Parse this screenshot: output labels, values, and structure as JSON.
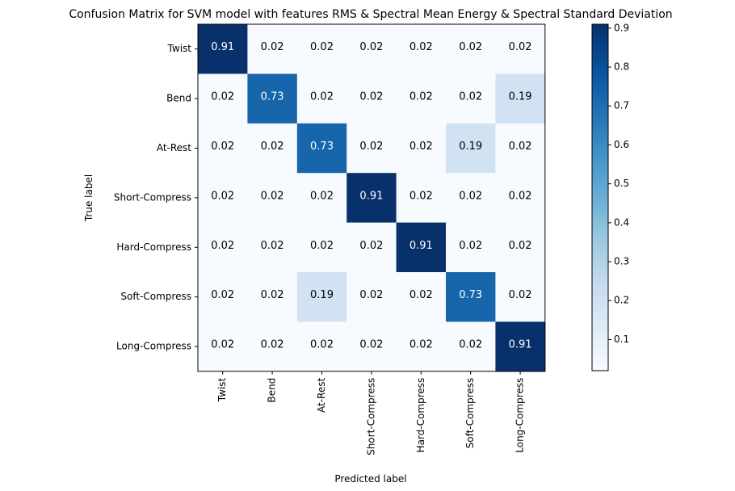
{
  "chart_data": {
    "type": "heatmap",
    "title": "Confusion Matrix for SVM model with features RMS & Spectral Mean Energy & Spectral Standard Deviation",
    "xlabel": "Predicted label",
    "ylabel": "True label",
    "x_categories": [
      "Twist",
      "Bend",
      "At-Rest",
      "Short-Compress",
      "Hard-Compress",
      "Soft-Compress",
      "Long-Compress"
    ],
    "y_categories": [
      "Twist",
      "Bend",
      "At-Rest",
      "Short-Compress",
      "Hard-Compress",
      "Soft-Compress",
      "Long-Compress"
    ],
    "values": [
      [
        0.91,
        0.02,
        0.02,
        0.02,
        0.02,
        0.02,
        0.02
      ],
      [
        0.02,
        0.73,
        0.02,
        0.02,
        0.02,
        0.02,
        0.19
      ],
      [
        0.02,
        0.02,
        0.73,
        0.02,
        0.02,
        0.19,
        0.02
      ],
      [
        0.02,
        0.02,
        0.02,
        0.91,
        0.02,
        0.02,
        0.02
      ],
      [
        0.02,
        0.02,
        0.02,
        0.02,
        0.91,
        0.02,
        0.02
      ],
      [
        0.02,
        0.02,
        0.19,
        0.02,
        0.02,
        0.73,
        0.02
      ],
      [
        0.02,
        0.02,
        0.02,
        0.02,
        0.02,
        0.02,
        0.91
      ]
    ],
    "colormap": "Blues",
    "colorbar": {
      "range": [
        0.02,
        0.91
      ],
      "ticks": [
        0.1,
        0.2,
        0.3,
        0.4,
        0.5,
        0.6,
        0.7,
        0.8,
        0.9
      ],
      "tick_labels": [
        "0.1",
        "0.2",
        "0.3",
        "0.4",
        "0.5",
        "0.6",
        "0.7",
        "0.8",
        "0.9"
      ]
    },
    "text_colors": {
      "dark": "#000000",
      "light": "#ffffff"
    }
  }
}
